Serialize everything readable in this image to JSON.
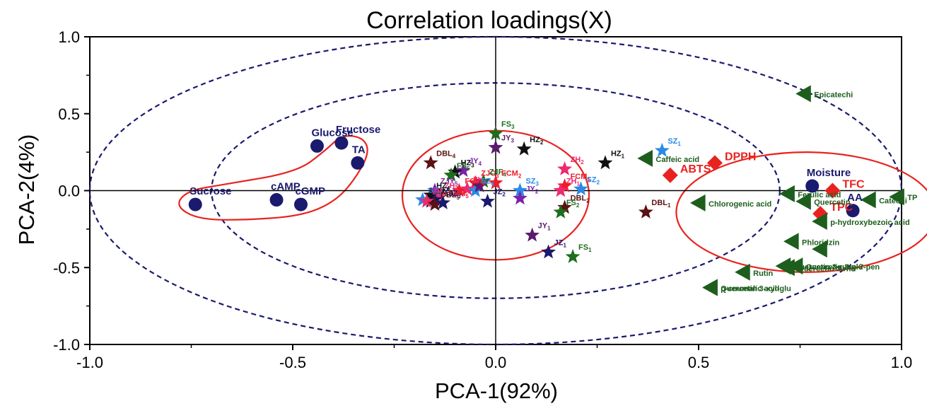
{
  "chart_data": {
    "type": "scatter",
    "title": "Correlation loadings(X)",
    "xlabel": "PCA-1(92%)",
    "ylabel": "PCA-2(4%)",
    "xlim": [
      -1.0,
      1.0
    ],
    "ylim": [
      -1.0,
      1.0
    ],
    "x_ticks": [
      "-1.0",
      "-0.5",
      "0.0",
      "0.5",
      "1.0"
    ],
    "y_ticks": [
      "1.0",
      "0.5",
      "0.0",
      "-0.5",
      "-1.0"
    ],
    "grid": false,
    "reference_lines": {
      "x": 0,
      "y": 0
    },
    "reference_ellipses": [
      {
        "style": "dashed",
        "color": "#1a1a6e",
        "center": [
          0,
          0
        ],
        "rx": 1.0,
        "ry": 1.0
      },
      {
        "style": "dashed",
        "color": "#1a1a6e",
        "center": [
          0,
          0
        ],
        "rx": 0.7,
        "ry": 0.7
      }
    ],
    "group_outlines": [
      {
        "color": "#e8231f",
        "shape": "ellipse",
        "center": [
          0.0,
          -0.03
        ],
        "rx": 0.23,
        "ry": 0.42
      },
      {
        "color": "#e8231f",
        "shape": "ellipse",
        "center": [
          0.765,
          -0.14
        ],
        "rx": 0.32,
        "ry": 0.39
      },
      {
        "color": "#e8231f",
        "shape": "polygon",
        "points": [
          [
            -0.79,
            -0.1
          ],
          [
            -0.76,
            0.0
          ],
          [
            -0.67,
            0.04
          ],
          [
            -0.49,
            0.12
          ],
          [
            -0.42,
            0.26
          ],
          [
            -0.38,
            0.36
          ],
          [
            -0.33,
            0.35
          ],
          [
            -0.31,
            0.26
          ],
          [
            -0.34,
            0.1
          ],
          [
            -0.39,
            -0.06
          ],
          [
            -0.47,
            -0.16
          ],
          [
            -0.6,
            -0.19
          ],
          [
            -0.73,
            -0.19
          ]
        ]
      }
    ],
    "series": [
      {
        "marker": "circle",
        "color": "#1a1a6e",
        "points": [
          {
            "label": "Sucrose",
            "x": -0.74,
            "y": -0.09
          },
          {
            "label": "cAMP",
            "x": -0.54,
            "y": -0.06
          },
          {
            "label": "cGMP",
            "x": -0.48,
            "y": -0.09
          },
          {
            "label": "Glucose",
            "x": -0.44,
            "y": 0.29
          },
          {
            "label": "Fructose",
            "x": -0.38,
            "y": 0.31
          },
          {
            "label": "TA",
            "x": -0.34,
            "y": 0.18
          },
          {
            "label": "Moisture",
            "x": 0.78,
            "y": 0.03
          },
          {
            "label": "AA",
            "x": 0.88,
            "y": -0.13
          }
        ]
      },
      {
        "marker": "diamond",
        "color": "#e8231f",
        "points": [
          {
            "label": "ABTS",
            "x": 0.43,
            "y": 0.1
          },
          {
            "label": "DPPH",
            "x": 0.54,
            "y": 0.18
          },
          {
            "label": "TFC",
            "x": 0.83,
            "y": 0.0
          },
          {
            "label": "TPC",
            "x": 0.8,
            "y": -0.15
          }
        ]
      },
      {
        "marker": "triangle-left",
        "color": "#1d5e1d",
        "points": [
          {
            "label": "Epicatechi",
            "x": 0.76,
            "y": 0.63
          },
          {
            "label": "Caffeic acid",
            "x": 0.37,
            "y": 0.21
          },
          {
            "label": "Ferulic acid",
            "x": 0.72,
            "y": -0.02
          },
          {
            "label": "Chlorogenic acid",
            "x": 0.5,
            "y": -0.08
          },
          {
            "label": "Catechi",
            "x": 0.92,
            "y": -0.06
          },
          {
            "label": "TP",
            "x": 0.99,
            "y": -0.04
          },
          {
            "label": "Quercetin",
            "x": 0.76,
            "y": -0.07
          },
          {
            "label": "p-hydroxybezoic acid",
            "x": 0.8,
            "y": -0.2
          },
          {
            "label": "Phloridzin",
            "x": 0.73,
            "y": -0.33
          },
          {
            "label": "",
            "x": 0.8,
            "y": -0.38
          },
          {
            "label": "Quercetin 3-rutin-7-pen",
            "x": 0.71,
            "y": -0.49
          },
          {
            "label": "Quercetin 3-glu",
            "x": 0.74,
            "y": -0.49
          },
          {
            "label": "Quercetin 3-rha",
            "x": 0.72,
            "y": -0.5
          },
          {
            "label": "Rutin",
            "x": 0.61,
            "y": -0.53
          },
          {
            "label": "Quercetin 3-xyl-glu",
            "x": 0.53,
            "y": -0.63
          },
          {
            "label": "p-coumalic acid",
            "x": 0.53,
            "y": -0.63
          }
        ]
      },
      {
        "marker": "star",
        "color": "multi",
        "points": [
          {
            "label": "FS",
            "sub": "3",
            "x": 0.0,
            "y": 0.37,
            "color": "#1d6e1d"
          },
          {
            "label": "HZ",
            "sub": "2",
            "x": 0.07,
            "y": 0.27,
            "color": "#111111"
          },
          {
            "label": "JY",
            "sub": "3",
            "x": 0.0,
            "y": 0.28,
            "color": "#5b1a6e"
          },
          {
            "label": "DBL",
            "sub": "4",
            "x": -0.16,
            "y": 0.18,
            "color": "#5a1212"
          },
          {
            "label": "JY",
            "sub": "4",
            "x": -0.08,
            "y": 0.13,
            "color": "#7a22aa"
          },
          {
            "label": "HZ",
            "sub": "3",
            "x": -0.1,
            "y": 0.12,
            "color": "#111111"
          },
          {
            "label": "ZJC",
            "sub": "3",
            "x": -0.05,
            "y": 0.05,
            "color": "#ee1c2a"
          },
          {
            "label": "ZJF",
            "sub": "4",
            "x": -0.03,
            "y": 0.06,
            "color": "#1d6e1d"
          },
          {
            "label": "FCM",
            "sub": "2",
            "x": 0.0,
            "y": 0.05,
            "color": "#ee1c2a"
          },
          {
            "label": "FS",
            "sub": "5",
            "x": -0.11,
            "y": 0.1,
            "color": "#1d6e1d"
          },
          {
            "label": "ZJY",
            "sub": "5",
            "x": -0.15,
            "y": 0.0,
            "color": "#7a22aa"
          },
          {
            "label": "ZH",
            "sub": "3",
            "x": -0.14,
            "y": -0.03,
            "color": "#ee2a6e"
          },
          {
            "label": "HZ",
            "sub": "4",
            "x": -0.16,
            "y": -0.03,
            "color": "#111111"
          },
          {
            "label": "JZ",
            "sub": "4",
            "x": -0.15,
            "y": -0.06,
            "color": "#1a1a6e"
          },
          {
            "label": "JZ",
            "sub": "5",
            "x": -0.16,
            "y": -0.07,
            "color": "#111111"
          },
          {
            "label": "SZ",
            "sub": "5",
            "x": -0.18,
            "y": -0.06,
            "color": "#2a8ae8"
          },
          {
            "label": "ZH",
            "sub": "5",
            "x": -0.17,
            "y": -0.07,
            "color": "#ee2a6e"
          },
          {
            "label": "FCM",
            "sub": "5",
            "x": -0.13,
            "y": -0.08,
            "color": "#ee1c2a"
          },
          {
            "label": "DBL",
            "sub": "5",
            "x": -0.15,
            "y": -0.09,
            "color": "#5a1212"
          },
          {
            "label": "JZ",
            "sub": "3",
            "x": -0.13,
            "y": -0.08,
            "color": "#1a1a6e"
          },
          {
            "label": "FCM",
            "sub": "4",
            "x": -0.09,
            "y": 0.0,
            "color": "#ee1c2a"
          },
          {
            "label": "ZH",
            "sub": "4",
            "x": -0.07,
            "y": 0.01,
            "color": "#ee2a6e"
          },
          {
            "label": "SZ",
            "sub": "4",
            "x": -0.05,
            "y": 0.0,
            "color": "#2a8ae8"
          },
          {
            "label": "",
            "sub": "",
            "x": -0.04,
            "y": 0.03,
            "color": "#5b1a6e"
          },
          {
            "label": "JZ",
            "sub": "2",
            "x": -0.02,
            "y": -0.07,
            "color": "#1a1a6e"
          },
          {
            "label": "SZ",
            "sub": "3",
            "x": 0.06,
            "y": 0.0,
            "color": "#2a8ae8"
          },
          {
            "label": "JY",
            "sub": "2",
            "x": 0.06,
            "y": -0.05,
            "color": "#7a22aa"
          },
          {
            "label": "FCM",
            "sub": "1",
            "x": 0.17,
            "y": 0.03,
            "color": "#ee1c2a"
          },
          {
            "label": "ZH",
            "sub": "2",
            "x": 0.17,
            "y": 0.14,
            "color": "#ee2a6e"
          },
          {
            "label": "ZH",
            "sub": "1",
            "x": 0.16,
            "y": 0.0,
            "color": "#ee2a6e"
          },
          {
            "label": "DBL",
            "sub": "2",
            "x": 0.17,
            "y": -0.11,
            "color": "#5a1212"
          },
          {
            "label": "FS",
            "sub": "2",
            "x": 0.16,
            "y": -0.14,
            "color": "#1d6e1d"
          },
          {
            "label": "SZ",
            "sub": "2",
            "x": 0.21,
            "y": 0.01,
            "color": "#2a8ae8"
          },
          {
            "label": "JY",
            "sub": "1",
            "x": 0.09,
            "y": -0.29,
            "color": "#5b1a6e"
          },
          {
            "label": "JZ",
            "sub": "1",
            "x": 0.13,
            "y": -0.4,
            "color": "#1a1a6e"
          },
          {
            "label": "FS",
            "sub": "1",
            "x": 0.19,
            "y": -0.43,
            "color": "#1d6e1d"
          },
          {
            "label": "HZ",
            "sub": "1",
            "x": 0.27,
            "y": 0.18,
            "color": "#111111"
          },
          {
            "label": "SZ",
            "sub": "1",
            "x": 0.41,
            "y": 0.26,
            "color": "#2a8ae8"
          },
          {
            "label": "DBL",
            "sub": "1",
            "x": 0.37,
            "y": -0.14,
            "color": "#5a1212"
          }
        ]
      }
    ]
  }
}
